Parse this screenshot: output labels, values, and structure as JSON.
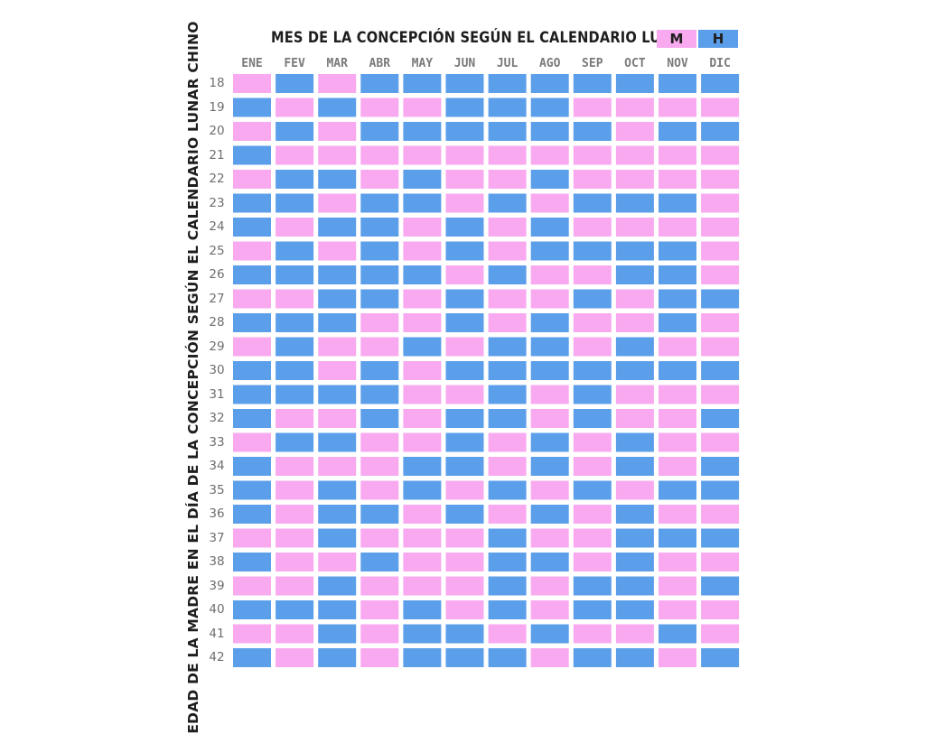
{
  "chart_data": {
    "type": "heatmap",
    "title": "MES DE LA CONCEPCIÓN SEGÚN EL CALENDARIO LUNAR",
    "ylabel": "EDAD DE LA MADRE EN EL DÍA DE LA CONCEPCIÓN SEGÚN EL CALENDARIO LUNAR CHINO",
    "legend": [
      {
        "label": "M",
        "color": "#f9a9ef"
      },
      {
        "label": "H",
        "color": "#5b9ee9"
      }
    ],
    "legend_placement": "top-right",
    "x": [
      "ENE",
      "FEV",
      "MAR",
      "ABR",
      "MAY",
      "JUN",
      "JUL",
      "AGO",
      "SEP",
      "OCT",
      "NOV",
      "DIC"
    ],
    "y": [
      "18",
      "19",
      "20",
      "21",
      "22",
      "23",
      "24",
      "25",
      "26",
      "27",
      "28",
      "29",
      "30",
      "31",
      "32",
      "33",
      "34",
      "35",
      "36",
      "37",
      "38",
      "39",
      "40",
      "41",
      "42"
    ],
    "values": [
      [
        "M",
        "H",
        "M",
        "H",
        "H",
        "H",
        "H",
        "H",
        "H",
        "H",
        "H",
        "H"
      ],
      [
        "H",
        "M",
        "H",
        "M",
        "M",
        "H",
        "H",
        "H",
        "M",
        "M",
        "M",
        "M"
      ],
      [
        "M",
        "H",
        "M",
        "H",
        "H",
        "H",
        "H",
        "H",
        "H",
        "M",
        "H",
        "H"
      ],
      [
        "H",
        "M",
        "M",
        "M",
        "M",
        "M",
        "M",
        "M",
        "M",
        "M",
        "M",
        "M"
      ],
      [
        "M",
        "H",
        "H",
        "M",
        "H",
        "M",
        "M",
        "H",
        "M",
        "M",
        "M",
        "M"
      ],
      [
        "H",
        "H",
        "M",
        "H",
        "H",
        "M",
        "H",
        "M",
        "H",
        "H",
        "H",
        "M"
      ],
      [
        "H",
        "M",
        "H",
        "H",
        "M",
        "H",
        "M",
        "H",
        "M",
        "M",
        "M",
        "M"
      ],
      [
        "M",
        "H",
        "M",
        "H",
        "M",
        "H",
        "M",
        "H",
        "H",
        "H",
        "H",
        "M"
      ],
      [
        "H",
        "H",
        "H",
        "H",
        "H",
        "M",
        "H",
        "M",
        "M",
        "H",
        "H",
        "M"
      ],
      [
        "M",
        "M",
        "H",
        "H",
        "M",
        "H",
        "M",
        "M",
        "H",
        "M",
        "H",
        "H"
      ],
      [
        "H",
        "H",
        "H",
        "M",
        "M",
        "H",
        "M",
        "H",
        "M",
        "M",
        "H",
        "M"
      ],
      [
        "M",
        "H",
        "M",
        "M",
        "H",
        "M",
        "H",
        "H",
        "M",
        "H",
        "M",
        "M"
      ],
      [
        "H",
        "H",
        "M",
        "H",
        "M",
        "H",
        "H",
        "H",
        "H",
        "H",
        "H",
        "H"
      ],
      [
        "H",
        "H",
        "H",
        "H",
        "M",
        "M",
        "H",
        "M",
        "H",
        "M",
        "M",
        "M"
      ],
      [
        "H",
        "M",
        "M",
        "H",
        "M",
        "H",
        "H",
        "M",
        "H",
        "M",
        "M",
        "H"
      ],
      [
        "M",
        "H",
        "H",
        "M",
        "M",
        "H",
        "M",
        "H",
        "M",
        "H",
        "M",
        "M"
      ],
      [
        "H",
        "M",
        "M",
        "M",
        "H",
        "H",
        "M",
        "H",
        "M",
        "H",
        "M",
        "H"
      ],
      [
        "H",
        "M",
        "H",
        "M",
        "H",
        "M",
        "H",
        "M",
        "H",
        "M",
        "H",
        "H"
      ],
      [
        "H",
        "M",
        "H",
        "H",
        "M",
        "H",
        "M",
        "H",
        "M",
        "H",
        "M",
        "M"
      ],
      [
        "M",
        "M",
        "H",
        "M",
        "M",
        "M",
        "H",
        "M",
        "M",
        "H",
        "H",
        "H"
      ],
      [
        "H",
        "M",
        "M",
        "H",
        "M",
        "M",
        "H",
        "H",
        "M",
        "H",
        "M",
        "M"
      ],
      [
        "M",
        "M",
        "H",
        "M",
        "M",
        "M",
        "H",
        "M",
        "H",
        "H",
        "M",
        "H"
      ],
      [
        "H",
        "H",
        "H",
        "M",
        "H",
        "M",
        "H",
        "M",
        "H",
        "H",
        "M",
        "M"
      ],
      [
        "M",
        "M",
        "H",
        "M",
        "H",
        "H",
        "M",
        "H",
        "M",
        "M",
        "H",
        "M"
      ],
      [
        "H",
        "M",
        "H",
        "M",
        "H",
        "H",
        "H",
        "M",
        "H",
        "H",
        "M",
        "H"
      ]
    ]
  }
}
